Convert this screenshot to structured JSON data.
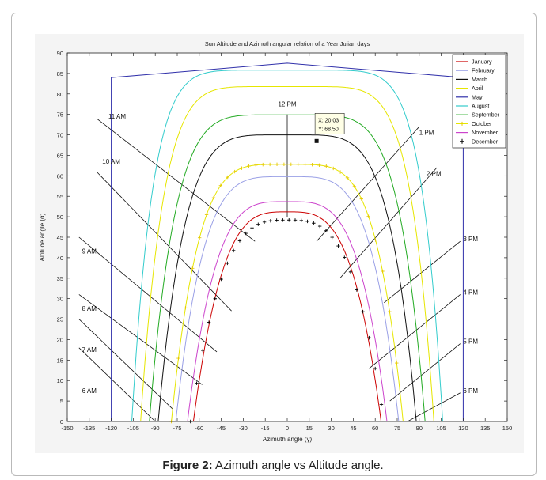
{
  "chart_data": {
    "type": "line",
    "title": "Sun Altitude and Azimuth angular relation of a Year Julian days",
    "xlabel": "Azimuth angle (γ)",
    "ylabel": "Altitude angle (α)",
    "xlim": [
      -150,
      150
    ],
    "ylim": [
      0,
      90
    ],
    "xticks": [
      -150,
      -135,
      -120,
      -105,
      -90,
      -75,
      -60,
      -45,
      -30,
      -15,
      0,
      15,
      30,
      45,
      60,
      75,
      90,
      105,
      120,
      135,
      150
    ],
    "yticks": [
      0,
      5,
      10,
      15,
      20,
      25,
      30,
      35,
      40,
      45,
      50,
      55,
      60,
      65,
      70,
      75,
      80,
      85,
      90
    ],
    "legend_position": "top-right",
    "series": [
      {
        "name": "January",
        "color": "#cc0000",
        "peak": 51.2,
        "edge": 64,
        "power": 3.4,
        "marker": "none"
      },
      {
        "name": "February",
        "color": "#9aa0e6",
        "peak": 59.8,
        "edge": 76,
        "power": 4.2,
        "marker": "none"
      },
      {
        "name": "March",
        "color": "#111111",
        "peak": 70.0,
        "edge": 88,
        "power": 5.0,
        "marker": "none"
      },
      {
        "name": "April",
        "color": "#e6e600",
        "peak": 81.8,
        "edge": 100,
        "power": 6.5,
        "marker": "none"
      },
      {
        "name": "May",
        "color": "#3030aa",
        "peak": 87.5,
        "edge": 120,
        "power": 40,
        "marker": "none"
      },
      {
        "name": "August",
        "color": "#33cccc",
        "peak": 85.8,
        "edge": 106,
        "power": 7.5,
        "marker": "none"
      },
      {
        "name": "September",
        "color": "#22aa22",
        "peak": 74.9,
        "edge": 94,
        "power": 5.5,
        "marker": "none"
      },
      {
        "name": "October",
        "color": "#e6e600",
        "peak": 62.8,
        "edge": 79,
        "power": 4.5,
        "marker": "plus"
      },
      {
        "name": "November",
        "color": "#cc44cc",
        "peak": 53.7,
        "edge": 68,
        "power": 3.7,
        "marker": "none"
      },
      {
        "name": "December",
        "color": "#000000",
        "peak": 49.2,
        "edge": 66,
        "power": 3.2,
        "marker": "plus-only"
      }
    ],
    "hour_labels": [
      {
        "label": "6 AM",
        "x": -135,
        "y": 7
      },
      {
        "label": "7 AM",
        "x": -135,
        "y": 17
      },
      {
        "label": "8 AM",
        "x": -135,
        "y": 27
      },
      {
        "label": "9 AM",
        "x": -135,
        "y": 41
      },
      {
        "label": "10 AM",
        "x": -120,
        "y": 63
      },
      {
        "label": "11 AM",
        "x": -116,
        "y": 74
      },
      {
        "label": "12 PM",
        "x": 0,
        "y": 77
      },
      {
        "label": "1 PM",
        "x": 95,
        "y": 70
      },
      {
        "label": "2 PM",
        "x": 100,
        "y": 60
      },
      {
        "label": "3 PM",
        "x": 125,
        "y": 44
      },
      {
        "label": "4 PM",
        "x": 125,
        "y": 31
      },
      {
        "label": "5 PM",
        "x": 125,
        "y": 19
      },
      {
        "label": "6 PM",
        "x": 125,
        "y": 7
      }
    ],
    "hour_lines": [
      {
        "from": [
          -142,
          18
        ],
        "to": [
          -90,
          0
        ]
      },
      {
        "from": [
          -142,
          25
        ],
        "to": [
          -78,
          3
        ]
      },
      {
        "from": [
          -142,
          31
        ],
        "to": [
          -58,
          9
        ]
      },
      {
        "from": [
          -142,
          45
        ],
        "to": [
          -48,
          17
        ]
      },
      {
        "from": [
          -130,
          61
        ],
        "to": [
          -38,
          27
        ]
      },
      {
        "from": [
          -130,
          74
        ],
        "to": [
          -22,
          44
        ]
      },
      {
        "from": [
          0,
          75
        ],
        "to": [
          0,
          50
        ]
      },
      {
        "from": [
          20,
          44
        ],
        "to": [
          90,
          72
        ]
      },
      {
        "from": [
          36,
          35
        ],
        "to": [
          102,
          62
        ]
      },
      {
        "from": [
          66,
          29
        ],
        "to": [
          118,
          44
        ]
      },
      {
        "from": [
          56,
          13
        ],
        "to": [
          118,
          31
        ]
      },
      {
        "from": [
          70,
          5
        ],
        "to": [
          118,
          19
        ]
      },
      {
        "from": [
          82,
          0
        ],
        "to": [
          118,
          7
        ]
      }
    ],
    "datatip": {
      "x_text": "X: 20.03",
      "y_text": "Y: 68.50",
      "x": 20.03,
      "y": 68.5
    }
  },
  "caption": {
    "label": "Figure 2:",
    "text": "Azimuth angle vs Altitude angle."
  }
}
